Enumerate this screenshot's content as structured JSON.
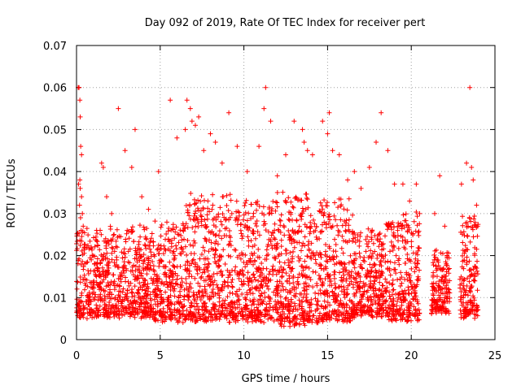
{
  "chart_data": {
    "type": "scatter",
    "title": "Day 092 of 2019, Rate Of TEC Index for receiver pert",
    "xlabel": "GPS time / hours",
    "ylabel": "ROTI / TECUs",
    "xlim": [
      0,
      25
    ],
    "ylim": [
      0,
      0.07
    ],
    "xticks": [
      "0",
      "5",
      "10",
      "15",
      "20",
      "25"
    ],
    "yticks": [
      "0",
      "0.01",
      "0.02",
      "0.03",
      "0.04",
      "0.05",
      "0.06",
      "0.07"
    ],
    "xtick_values": [
      0,
      5,
      10,
      15,
      20,
      25
    ],
    "ytick_values": [
      0,
      0.01,
      0.02,
      0.03,
      0.04,
      0.05,
      0.06,
      0.07
    ],
    "grid": true,
    "marker": "+",
    "color": "#ff0000",
    "series": [
      {
        "x": [
          0.1,
          0.15,
          0.2,
          0.22,
          0.25,
          0.3,
          0.12,
          0.18,
          0.24,
          0.28,
          0.2,
          0.22,
          0.3,
          0.35,
          0.4,
          0.45,
          1.2,
          1.5,
          1.6,
          1.8,
          2.1,
          2.5,
          2.9,
          3.3,
          3.5,
          3.9,
          4.3,
          4.9,
          5.6,
          6.0,
          6.5,
          6.6,
          6.8,
          6.9,
          7.1,
          7.3,
          7.6,
          8.0,
          8.3,
          8.7,
          9.1,
          9.6,
          10.2,
          10.9,
          11.2,
          11.3,
          11.6,
          12.0,
          12.5,
          13.0,
          13.5,
          13.6,
          13.8,
          14.1,
          14.7,
          15.0,
          15.1,
          15.3,
          15.7,
          16.2,
          16.6,
          17.0,
          17.5,
          17.9,
          18.2,
          18.6,
          19.0,
          19.5,
          19.9,
          20.3,
          20.5,
          21.4,
          21.7,
          22.0,
          23.0,
          23.3,
          23.5,
          23.6,
          23.7,
          23.9
        ],
        "y": [
          0.06,
          0.06,
          0.057,
          0.053,
          0.046,
          0.044,
          0.037,
          0.032,
          0.029,
          0.026,
          0.038,
          0.036,
          0.034,
          0.03,
          0.027,
          0.022,
          0.026,
          0.042,
          0.041,
          0.034,
          0.03,
          0.055,
          0.045,
          0.041,
          0.05,
          0.034,
          0.031,
          0.04,
          0.057,
          0.048,
          0.05,
          0.057,
          0.055,
          0.052,
          0.051,
          0.053,
          0.045,
          0.049,
          0.047,
          0.042,
          0.054,
          0.046,
          0.04,
          0.046,
          0.055,
          0.06,
          0.052,
          0.039,
          0.044,
          0.052,
          0.05,
          0.047,
          0.045,
          0.044,
          0.052,
          0.049,
          0.054,
          0.045,
          0.044,
          0.038,
          0.04,
          0.036,
          0.041,
          0.047,
          0.054,
          0.045,
          0.037,
          0.037,
          0.033,
          0.037,
          0.03,
          0.03,
          0.039,
          0.027,
          0.037,
          0.042,
          0.06,
          0.041,
          0.038,
          0.032
        ]
      }
    ],
    "density_bands": [
      {
        "x0": 0,
        "x1": 2,
        "lo": 0.006,
        "hi": 0.026
      },
      {
        "x0": 2,
        "x1": 4.5,
        "lo": 0.006,
        "hi": 0.027
      },
      {
        "x0": 4.5,
        "x1": 6.5,
        "lo": 0.005,
        "hi": 0.028
      },
      {
        "x0": 6.5,
        "x1": 9.5,
        "lo": 0.005,
        "hi": 0.034
      },
      {
        "x0": 9.5,
        "x1": 12,
        "lo": 0.005,
        "hi": 0.033
      },
      {
        "x0": 12,
        "x1": 14.5,
        "lo": 0.004,
        "hi": 0.035
      },
      {
        "x0": 14.5,
        "x1": 16.5,
        "lo": 0.005,
        "hi": 0.033
      },
      {
        "x0": 16.5,
        "x1": 18.5,
        "lo": 0.006,
        "hi": 0.026
      },
      {
        "x0": 18.5,
        "x1": 20.5,
        "lo": 0.005,
        "hi": 0.03
      },
      {
        "x0": 21.2,
        "x1": 22.3,
        "lo": 0.007,
        "hi": 0.021
      },
      {
        "x0": 22.9,
        "x1": 24,
        "lo": 0.006,
        "hi": 0.03
      }
    ]
  }
}
